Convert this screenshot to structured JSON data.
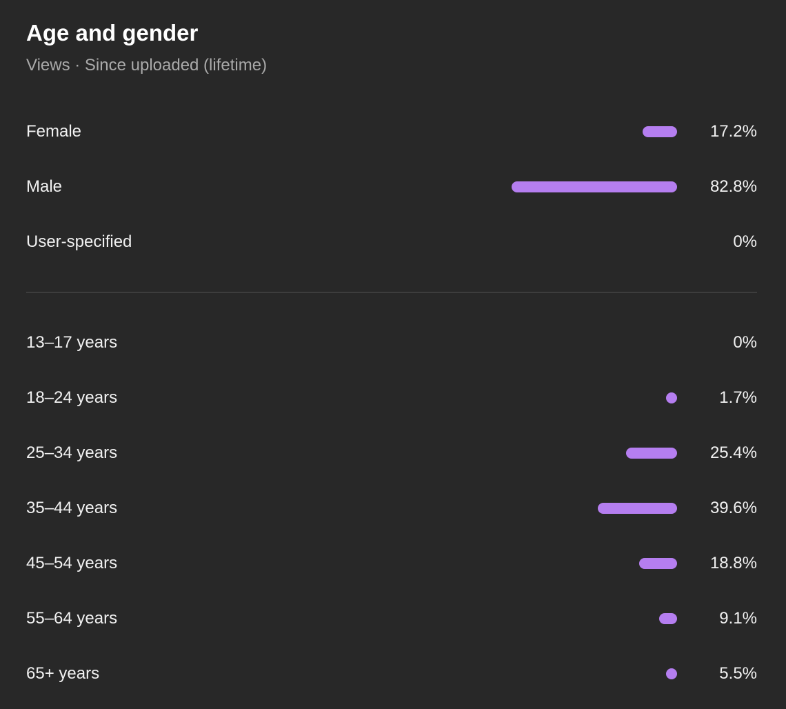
{
  "header": {
    "title": "Age and gender",
    "subtitle": "Views · Since uploaded (lifetime)"
  },
  "colors": {
    "bar": "#b57ef0",
    "background": "#282828"
  },
  "gender": [
    {
      "label": "Female",
      "value": "17.2%",
      "percent": 17.2
    },
    {
      "label": "Male",
      "value": "82.8%",
      "percent": 82.8
    },
    {
      "label": "User-specified",
      "value": "0%",
      "percent": 0
    }
  ],
  "age": [
    {
      "label": "13–17 years",
      "value": "0%",
      "percent": 0
    },
    {
      "label": "18–24 years",
      "value": "1.7%",
      "percent": 1.7
    },
    {
      "label": "25–34 years",
      "value": "25.4%",
      "percent": 25.4
    },
    {
      "label": "35–44 years",
      "value": "39.6%",
      "percent": 39.6
    },
    {
      "label": "45–54 years",
      "value": "18.8%",
      "percent": 18.8
    },
    {
      "label": "55–64 years",
      "value": "9.1%",
      "percent": 9.1
    },
    {
      "label": "65+ years",
      "value": "5.5%",
      "percent": 5.5
    }
  ]
}
